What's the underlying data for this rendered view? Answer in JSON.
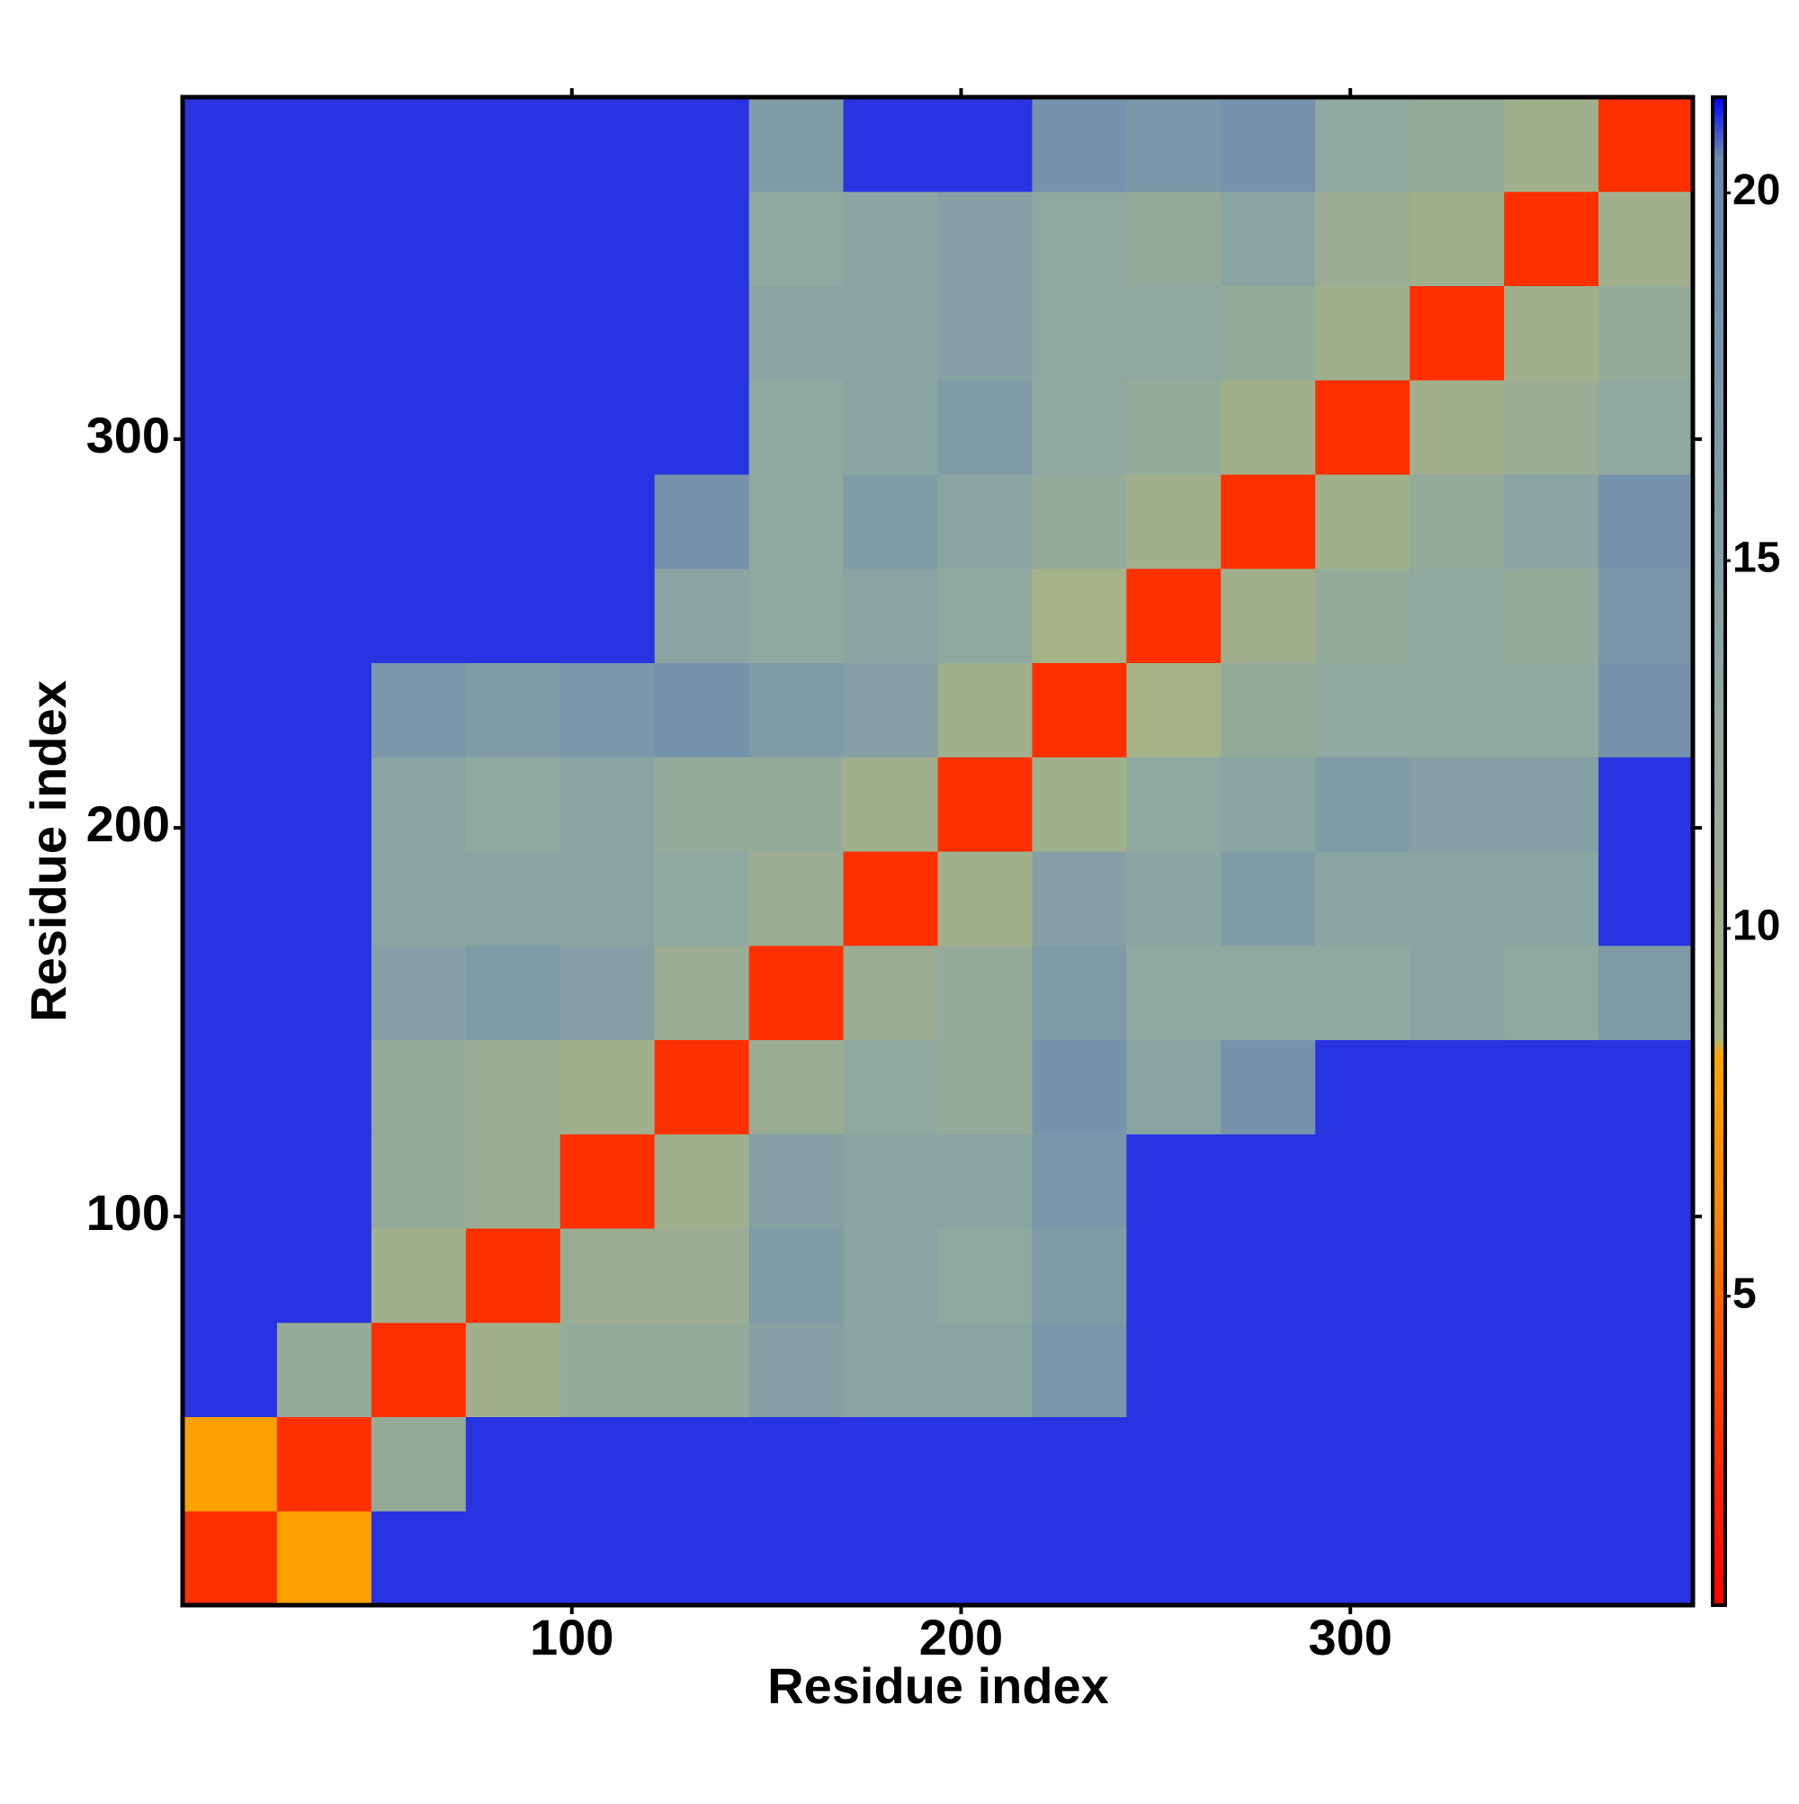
{
  "chart_data": {
    "type": "heatmap",
    "x_label": "Residue index",
    "y_label": "Residue index",
    "xlim": [
      0,
      388
    ],
    "ylim": [
      0,
      388
    ],
    "xticks": [
      100,
      200,
      300
    ],
    "yticks": [
      100,
      200,
      300
    ],
    "bins": [
      0,
      24.25,
      48.5,
      72.75,
      97,
      121.25,
      145.5,
      169.75,
      194,
      218.25,
      242.5,
      266.75,
      291,
      315.25,
      339.5,
      363.75,
      388
    ],
    "values": [
      [
        3,
        8,
        21,
        21,
        21,
        21,
        21,
        21,
        21,
        21,
        21,
        21,
        21,
        21,
        21,
        21
      ],
      [
        8,
        3,
        12,
        21,
        21,
        21,
        21,
        21,
        21,
        21,
        21,
        21,
        21,
        21,
        21,
        21
      ],
      [
        21,
        12,
        3,
        10,
        12,
        12,
        15,
        14,
        14,
        17,
        21,
        21,
        21,
        21,
        21,
        21
      ],
      [
        21,
        21,
        10,
        3,
        11,
        11,
        16,
        14,
        13,
        16,
        21,
        21,
        21,
        21,
        21,
        21
      ],
      [
        21,
        21,
        12,
        11,
        3,
        10,
        15,
        14,
        14,
        17,
        21,
        21,
        21,
        21,
        21,
        21
      ],
      [
        21,
        21,
        12,
        11,
        10,
        3,
        11,
        13,
        12,
        18,
        14,
        18,
        21,
        21,
        21,
        21
      ],
      [
        21,
        21,
        15,
        16,
        15,
        11,
        3,
        11,
        12,
        16,
        13,
        13,
        13,
        14,
        13,
        16
      ],
      [
        21,
        21,
        14,
        14,
        14,
        13,
        11,
        3,
        10,
        15,
        14,
        16,
        14,
        14,
        14,
        21
      ],
      [
        21,
        21,
        14,
        13,
        14,
        12,
        12,
        10,
        3,
        10,
        13,
        14,
        16,
        15,
        15,
        21
      ],
      [
        21,
        21,
        17,
        16,
        17,
        18,
        16,
        15,
        10,
        3,
        9,
        12,
        13,
        13,
        13,
        18
      ],
      [
        21,
        21,
        21,
        21,
        21,
        14,
        13,
        14,
        13,
        9,
        3,
        10,
        12,
        13,
        12,
        17
      ],
      [
        21,
        21,
        21,
        21,
        21,
        18,
        13,
        16,
        14,
        12,
        10,
        3,
        10,
        12,
        14,
        18
      ],
      [
        21,
        21,
        21,
        21,
        21,
        21,
        13,
        14,
        16,
        13,
        12,
        10,
        3,
        10,
        11,
        13
      ],
      [
        21,
        21,
        21,
        21,
        21,
        21,
        14,
        14,
        15,
        13,
        13,
        12,
        10,
        3,
        10,
        12
      ],
      [
        21,
        21,
        21,
        21,
        21,
        21,
        13,
        14,
        15,
        13,
        12,
        14,
        11,
        10,
        3,
        10
      ],
      [
        21,
        21,
        21,
        21,
        21,
        21,
        16,
        21,
        21,
        18,
        17,
        18,
        13,
        12,
        10,
        3
      ]
    ],
    "clim": [
      0.8,
      21.3
    ],
    "cticks": [
      5,
      10,
      15,
      20
    ],
    "colorscale": [
      [
        0.8,
        "#ff0000"
      ],
      [
        3,
        "#ff3000"
      ],
      [
        6,
        "#ff8000"
      ],
      [
        8.3,
        "#ffa500"
      ],
      [
        8.5,
        "#a8b484"
      ],
      [
        13,
        "#8fa8a0"
      ],
      [
        20.5,
        "#6a88b0"
      ],
      [
        21.3,
        "#0000ff"
      ]
    ]
  }
}
